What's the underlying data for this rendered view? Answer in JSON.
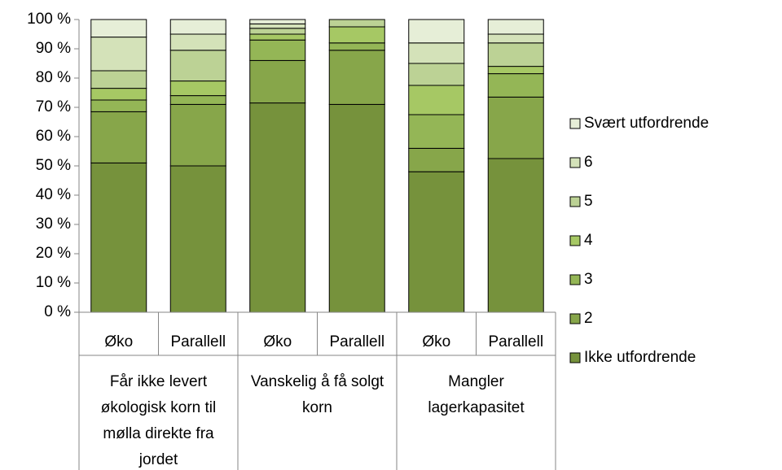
{
  "chart_data": {
    "type": "stacked_bar_100",
    "categories": [
      "Øko",
      "Parallell",
      "Øko",
      "Parallell",
      "Øko",
      "Parallell"
    ],
    "groups": [
      "Får ikke levert økologisk korn til mølla direkte fra jordet",
      "Vanskelig å få solgt korn",
      "Mangler lagerkapasitet"
    ],
    "series": [
      {
        "name": "Ikke utfordrende",
        "color": "#76923c",
        "values": [
          51,
          50,
          71.5,
          71,
          48,
          52.5
        ]
      },
      {
        "name": "2",
        "color": "#87a64a",
        "values": [
          17.5,
          21,
          14.5,
          18.5,
          8,
          21
        ]
      },
      {
        "name": "3",
        "color": "#94b656",
        "values": [
          4,
          3,
          7,
          2.5,
          11.5,
          8
        ]
      },
      {
        "name": "4",
        "color": "#a6c864",
        "values": [
          4,
          5,
          2,
          5.5,
          10,
          2.5
        ]
      },
      {
        "name": "5",
        "color": "#bcd295",
        "values": [
          6,
          10.5,
          2,
          2.5,
          7.5,
          8
        ]
      },
      {
        "name": "6",
        "color": "#d4e2b9",
        "values": [
          11.5,
          5.5,
          1.5,
          0,
          7,
          3
        ]
      },
      {
        "name": "Svært utfordrende",
        "color": "#e6eed7",
        "values": [
          6,
          5,
          1.5,
          0,
          8,
          5
        ]
      }
    ],
    "ylim": [
      0,
      100
    ],
    "yticks": [
      {
        "value": 0,
        "label": "0 %"
      },
      {
        "value": 10,
        "label": "10 %"
      },
      {
        "value": 20,
        "label": "20 %"
      },
      {
        "value": 30,
        "label": "30 %"
      },
      {
        "value": 40,
        "label": "40 %"
      },
      {
        "value": 50,
        "label": "50 %"
      },
      {
        "value": 60,
        "label": "60 %"
      },
      {
        "value": 70,
        "label": "70 %"
      },
      {
        "value": 80,
        "label": "80 %"
      },
      {
        "value": 90,
        "label": "90 %"
      },
      {
        "value": 100,
        "label": "100 %"
      }
    ],
    "legend": "right"
  }
}
